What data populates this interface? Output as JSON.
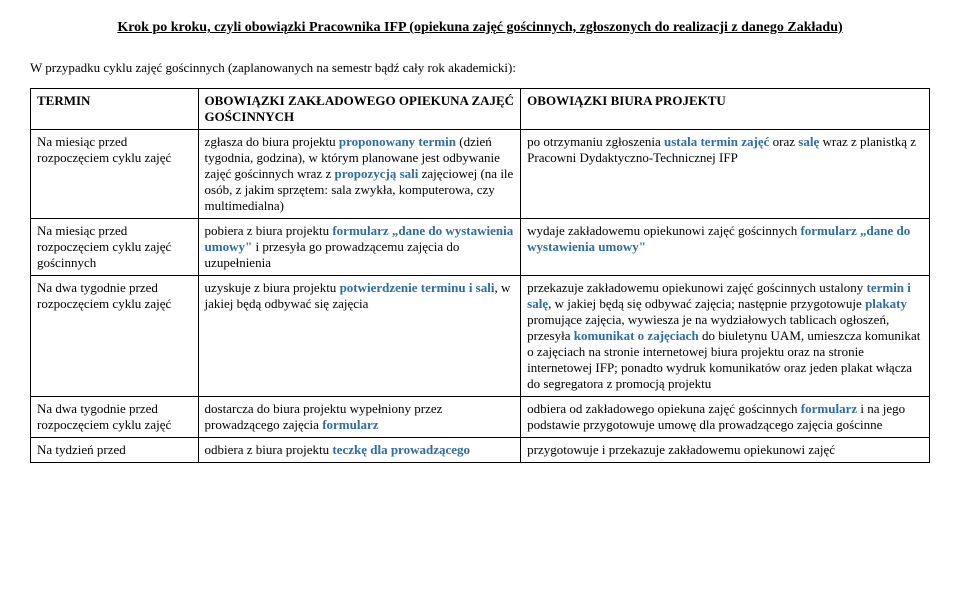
{
  "title": "Krok po kroku, czyli obowiązki Pracownika IFP (opiekuna zajęć gościnnych, zgłoszonych do realizacji z danego Zakładu)",
  "intro": "W przypadku cyklu zajęć gościnnych (zaplanowanych na semestr bądź cały rok akademicki):",
  "headers": {
    "c0": "TERMIN",
    "c1": "OBOWIĄZKI ZAKŁADOWEGO OPIEKUNA ZAJĘĆ GOŚCINNYCH",
    "c2": "OBOWIĄZKI BIURA PROJEKTU"
  },
  "rows": [
    {
      "c0": "Na miesiąc przed rozpoczęciem cyklu zajęć",
      "c1_pre": "zgłasza do biura projektu ",
      "c1_hl1": "proponowany termin",
      "c1_mid1": " (dzień tygodnia, godzina), w którym planowane jest odbywanie zajęć gościnnych wraz z ",
      "c1_hl2": "propozycją sali",
      "c1_post": " zajęciowej (na ile osób, z jakim sprzętem: sala zwykła, komputerowa, czy multimedialna)",
      "c2_pre": "po otrzymaniu zgłoszenia ",
      "c2_hl1": "ustala termin zajęć",
      "c2_mid1": " oraz ",
      "c2_hl2": "salę",
      "c2_post": " wraz z planistką z Pracowni Dydaktyczno-Technicznej IFP"
    },
    {
      "c0": "Na miesiąc przed rozpoczęciem cyklu zajęć gościnnych",
      "c1_pre": "pobiera z biura projektu ",
      "c1_hl1": "formularz „dane do wystawienia umowy\"",
      "c1_post": " i przesyła go prowadzącemu zajęcia do uzupełnienia",
      "c2_pre": "wydaje zakładowemu opiekunowi zajęć gościnnych ",
      "c2_hl1": "formularz „dane do wystawienia umowy\"",
      "c2_post": ""
    },
    {
      "c0": "Na dwa tygodnie przed rozpoczęciem cyklu zajęć",
      "c1_pre": "uzyskuje z biura projektu ",
      "c1_hl1": "potwierdzenie terminu i sali",
      "c1_post": ", w jakiej będą odbywać się zajęcia",
      "c2_pre": "przekazuje zakładowemu opiekunowi zajęć gościnnych ustalony ",
      "c2_hl1": "termin i salę",
      "c2_mid1": ", w jakiej będą się odbywać zajęcia; następnie przygotowuje ",
      "c2_hl2": "plakaty",
      "c2_mid2": " promujące zajęcia, wywiesza je na wydziałowych tablicach ogłoszeń, przesyła ",
      "c2_hl3": "komunikat o zajęciach",
      "c2_post": " do biuletynu UAM, umieszcza komunikat o zajęciach na stronie internetowej biura projektu oraz na stronie internetowej IFP; ponadto wydruk komunikatów oraz jeden plakat włącza do segregatora z promocją projektu"
    },
    {
      "c0": "Na dwa tygodnie przed rozpoczęciem cyklu zajęć",
      "c1_pre": "dostarcza do biura projektu wypełniony przez prowadzącego zajęcia ",
      "c1_hl1": "formularz",
      "c1_post": "",
      "c2_pre": "odbiera od zakładowego opiekuna zajęć gościnnych ",
      "c2_hl1": "formularz",
      "c2_post": " i na jego podstawie przygotowuje umowę dla prowadzącego zajęcia gościnne"
    },
    {
      "c0": "Na tydzień przed",
      "c1_pre": "odbiera z biura projektu ",
      "c1_hl1": "teczkę dla prowadzącego",
      "c1_post": "",
      "c2_pre": "przygotowuje i przekazuje zakładowemu opiekunowi zajęć",
      "c2_post": ""
    }
  ]
}
